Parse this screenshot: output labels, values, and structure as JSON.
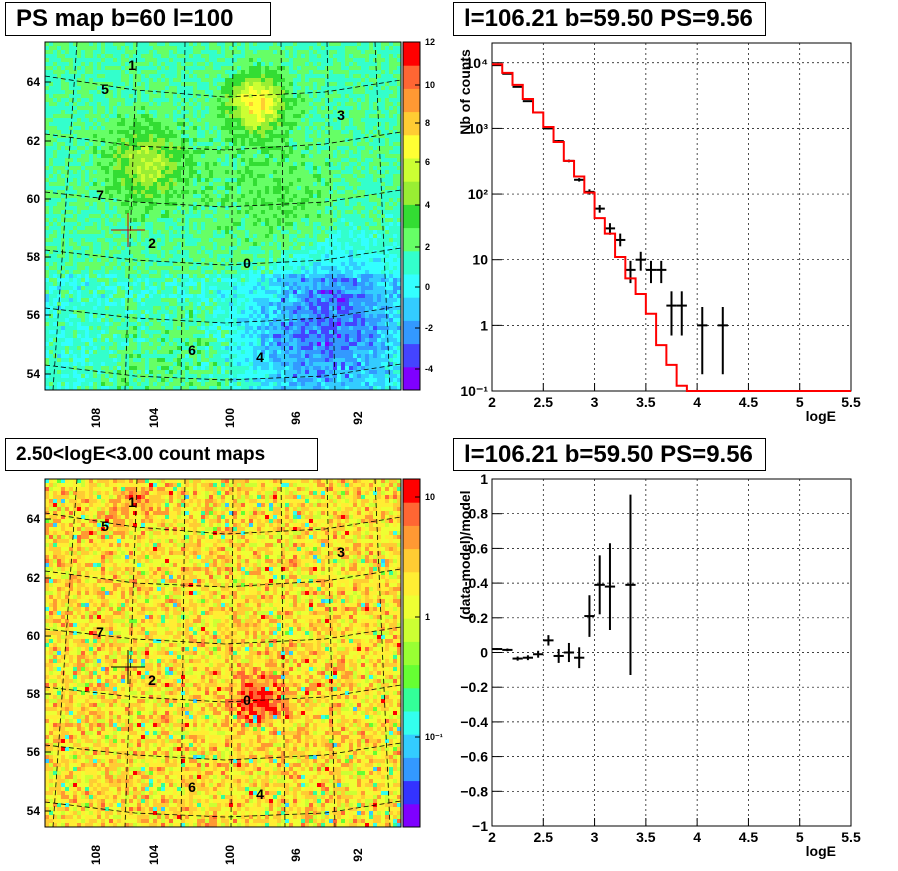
{
  "panels": {
    "top_left_title": "PS map b=60 l=100",
    "top_right_title": "l=106.21 b=59.50 PS=9.56",
    "bottom_left_title": "2.50<logE<3.00 count maps",
    "bottom_right_title": "l=106.21 b=59.50 PS=9.56"
  },
  "maps": [
    {
      "name": "ps-map",
      "colorscale": "linear",
      "colorbar_ticks": [
        "12",
        "10",
        "8",
        "6",
        "4",
        "2",
        "0",
        "-2",
        "-4"
      ],
      "y_ticks": [
        "64",
        "62",
        "60",
        "58",
        "56",
        "54"
      ],
      "x_ticks": [
        "108",
        "104",
        "100",
        "96",
        "92"
      ],
      "sources": [
        "1",
        "5",
        "3",
        "7",
        "2",
        "0",
        "6",
        "4"
      ]
    },
    {
      "name": "count-map",
      "colorscale": "log",
      "colorbar_ticks": [
        "10",
        "1",
        "10⁻¹"
      ],
      "y_ticks": [
        "64",
        "62",
        "60",
        "58",
        "56",
        "54"
      ],
      "x_ticks": [
        "108",
        "104",
        "100",
        "96",
        "92"
      ],
      "sources": [
        "1",
        "5",
        "3",
        "7",
        "2",
        "0",
        "6",
        "4"
      ]
    }
  ],
  "chart_data": [
    {
      "type": "scatter",
      "title": "l=106.21 b=59.50 PS=9.56",
      "xlabel": "logE",
      "ylabel": "Nb of counts",
      "yscale": "log",
      "xlim": [
        2,
        5.5
      ],
      "ylim": [
        0.1,
        20000
      ],
      "grid": true,
      "x_ticks": [
        "2",
        "2.5",
        "3",
        "3.5",
        "4",
        "4.5",
        "5",
        "5.5"
      ],
      "y_ticks": [
        {
          "value": 0.1,
          "label": "10⁻¹"
        },
        {
          "value": 1,
          "label": "1"
        },
        {
          "value": 10,
          "label": "10"
        },
        {
          "value": 100,
          "label": "10²"
        },
        {
          "value": 1000,
          "label": "10³"
        },
        {
          "value": 10000,
          "label": "10⁴"
        }
      ],
      "series": [
        {
          "kind": "errorbars",
          "color": "#000000",
          "x": [
            2.05,
            2.15,
            2.25,
            2.35,
            2.45,
            2.55,
            2.65,
            2.75,
            2.85,
            2.95,
            3.05,
            3.15,
            3.25,
            3.35,
            3.45,
            3.55,
            3.65,
            3.75,
            3.85,
            4.05,
            4.25
          ],
          "y": [
            9200,
            6800,
            4300,
            2600,
            1750,
            1000,
            640,
            320,
            165,
            108,
            60,
            30,
            20,
            7,
            10,
            7,
            7,
            2,
            2,
            1,
            1
          ],
          "ylow": [
            9100,
            6700,
            4250,
            2550,
            1700,
            970,
            615,
            305,
            155,
            98,
            52,
            24,
            16,
            4.4,
            6.8,
            4.4,
            4.4,
            0.7,
            0.7,
            0.18,
            0.18
          ],
          "yhigh": [
            9300,
            6900,
            4350,
            2650,
            1800,
            1030,
            665,
            335,
            175,
            118,
            68,
            36,
            25,
            9.6,
            13.2,
            9.6,
            9.6,
            3.3,
            3.3,
            1.9,
            1.9
          ]
        },
        {
          "kind": "step",
          "color": "#ff0000",
          "edges": [
            2.0,
            2.1,
            2.2,
            2.3,
            2.4,
            2.5,
            2.6,
            2.7,
            2.8,
            2.9,
            3.0,
            3.1,
            3.2,
            3.3,
            3.4,
            3.5,
            3.6,
            3.7,
            3.8,
            3.9,
            4.0,
            5.5
          ],
          "values": [
            9500,
            7000,
            4600,
            2800,
            1750,
            1050,
            620,
            320,
            185,
            105,
            43,
            25,
            11,
            5.2,
            3,
            1.5,
            0.5,
            0.25,
            0.12,
            0.1,
            0.1
          ]
        }
      ]
    },
    {
      "type": "scatter",
      "title": "l=106.21 b=59.50 PS=9.56",
      "xlabel": "logE",
      "ylabel": "(data-model)/model",
      "xlim": [
        2,
        5.5
      ],
      "ylim": [
        -1,
        1
      ],
      "grid": true,
      "x_ticks": [
        "2",
        "2.5",
        "3",
        "3.5",
        "4",
        "4.5",
        "5",
        "5.5"
      ],
      "y_ticks": [
        "1",
        "0.8",
        "0.6",
        "0.4",
        "0.2",
        "0",
        "−0.2",
        "−0.4",
        "−0.6",
        "−0.8",
        "−1"
      ],
      "series": [
        {
          "kind": "errorbars",
          "color": "#000000",
          "x": [
            2.05,
            2.15,
            2.25,
            2.35,
            2.45,
            2.55,
            2.65,
            2.75,
            2.85,
            2.95,
            3.05,
            3.15,
            3.35
          ],
          "y": [
            0.02,
            0.015,
            -0.035,
            -0.03,
            -0.01,
            0.07,
            -0.02,
            0.0,
            -0.03,
            0.21,
            0.39,
            0.38,
            0.39
          ],
          "err": [
            0.006,
            0.008,
            0.012,
            0.014,
            0.02,
            0.03,
            0.04,
            0.055,
            0.06,
            0.12,
            0.17,
            0.25,
            0.52
          ]
        }
      ]
    }
  ]
}
